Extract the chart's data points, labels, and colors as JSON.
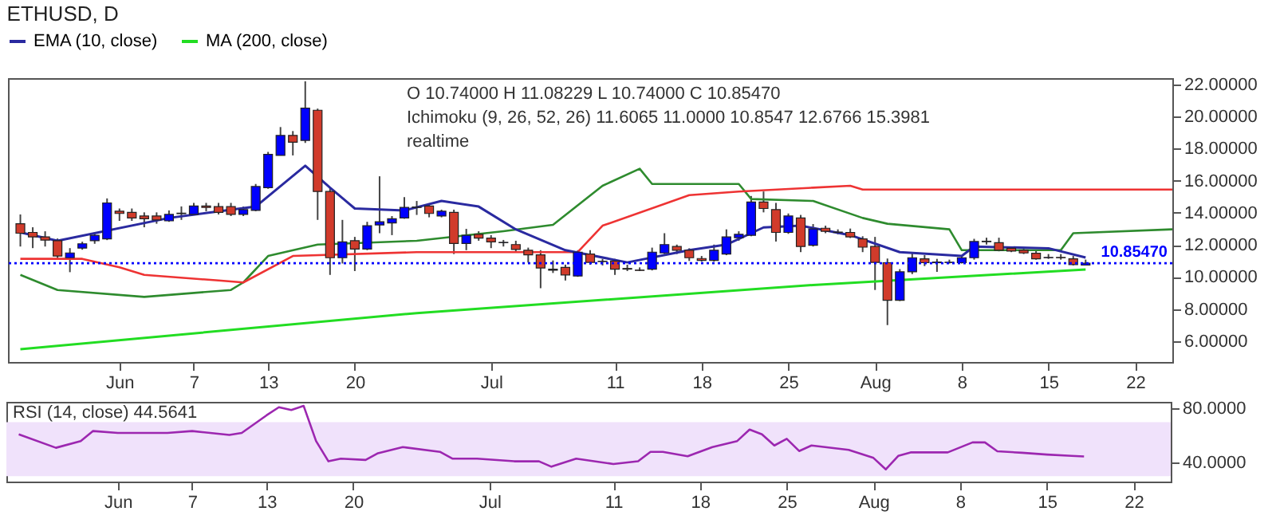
{
  "chart_data": [
    {
      "type": "candlestick",
      "title": "ETHUSD, D",
      "x": [
        "--05-24",
        "--05-25",
        "--05-26",
        "--05-27",
        "--05-28",
        "--05-29",
        "--05-30",
        "--05-31",
        "--06-01",
        "--06-02",
        "--06-03",
        "--06-04",
        "--06-05",
        "--06-06",
        "--06-07",
        "--06-08",
        "--06-09",
        "--06-10",
        "--06-11",
        "--06-12",
        "--06-13",
        "--06-14",
        "--06-15",
        "--06-16",
        "--06-17",
        "--06-18",
        "--06-19",
        "--06-20",
        "--06-21",
        "--06-22",
        "--06-23",
        "--06-24",
        "--06-25",
        "--06-26",
        "--06-27",
        "--06-28",
        "--06-29",
        "--06-30",
        "--07-01",
        "--07-02",
        "--07-03",
        "--07-04",
        "--07-05",
        "--07-06",
        "--07-07",
        "--07-08",
        "--07-09",
        "--07-10",
        "--07-11",
        "--07-12",
        "--07-13",
        "--07-14",
        "--07-15",
        "--07-16",
        "--07-17",
        "--07-18",
        "--07-19",
        "--07-20",
        "--07-21",
        "--07-22",
        "--07-23",
        "--07-24",
        "--07-25",
        "--07-26",
        "--07-27",
        "--07-28",
        "--07-29",
        "--07-30",
        "--07-31",
        "--08-01",
        "--08-02",
        "--08-03",
        "--08-04",
        "--08-05",
        "--08-06",
        "--08-07",
        "--08-08",
        "--08-09",
        "--08-10",
        "--08-11",
        "--08-12",
        "--08-13",
        "--08-14",
        "--08-15",
        "--08-16",
        "--08-17",
        "--08-18"
      ],
      "ohlc": [
        [
          13.32,
          13.9,
          11.9,
          12.73
        ],
        [
          12.78,
          13.1,
          11.8,
          12.5
        ],
        [
          12.5,
          12.85,
          11.9,
          12.3
        ],
        [
          12.26,
          12.4,
          11.1,
          11.31
        ],
        [
          11.2,
          11.8,
          10.3,
          11.5
        ],
        [
          11.8,
          12.2,
          11.7,
          12.07
        ],
        [
          12.26,
          12.78,
          12.07,
          12.6
        ],
        [
          12.38,
          14.9,
          12.3,
          14.62
        ],
        [
          14.1,
          14.27,
          13.5,
          13.96
        ],
        [
          14.03,
          14.27,
          13.5,
          13.68
        ],
        [
          13.8,
          14.03,
          13.1,
          13.63
        ],
        [
          13.8,
          14.03,
          13.32,
          13.56
        ],
        [
          13.5,
          14.15,
          13.44,
          13.9
        ],
        [
          13.95,
          14.4,
          13.56,
          13.98
        ],
        [
          13.9,
          14.62,
          13.87,
          14.43
        ],
        [
          14.43,
          14.62,
          14.1,
          14.34
        ],
        [
          14.39,
          14.62,
          13.9,
          14.03
        ],
        [
          14.39,
          14.62,
          13.8,
          13.9
        ],
        [
          13.9,
          14.39,
          13.8,
          14.2
        ],
        [
          14.15,
          15.8,
          14.1,
          15.64
        ],
        [
          15.57,
          17.8,
          15.5,
          17.65
        ],
        [
          17.58,
          19.35,
          17.58,
          18.83
        ],
        [
          18.83,
          19.1,
          17.58,
          18.4
        ],
        [
          18.52,
          22.2,
          18.36,
          20.53
        ],
        [
          20.4,
          20.5,
          13.56,
          15.33
        ],
        [
          15.33,
          15.57,
          10.13,
          11.2
        ],
        [
          11.2,
          13.56,
          10.84,
          12.19
        ],
        [
          12.26,
          12.5,
          10.37,
          11.74
        ],
        [
          11.74,
          13.44,
          11.67,
          13.2
        ],
        [
          13.25,
          16.28,
          12.73,
          13.44
        ],
        [
          13.37,
          13.8,
          12.61,
          13.63
        ],
        [
          13.68,
          14.98,
          13.63,
          14.34
        ],
        [
          14.34,
          14.74,
          13.87,
          14.36
        ],
        [
          14.43,
          14.5,
          13.72,
          13.96
        ],
        [
          13.8,
          14.2,
          13.72,
          14.1
        ],
        [
          14.03,
          14.2,
          11.43,
          12.09
        ],
        [
          12.09,
          13.0,
          11.67,
          12.6
        ],
        [
          12.66,
          12.85,
          12.26,
          12.43
        ],
        [
          12.43,
          12.61,
          11.8,
          12.19
        ],
        [
          12.14,
          12.31,
          11.9,
          12.16
        ],
        [
          12.02,
          12.26,
          11.6,
          11.72
        ],
        [
          11.67,
          11.83,
          10.9,
          11.38
        ],
        [
          11.38,
          11.67,
          9.3,
          10.56
        ],
        [
          10.49,
          11.03,
          10.25,
          10.42
        ],
        [
          10.6,
          10.77,
          9.78,
          10.13
        ],
        [
          10.06,
          11.67,
          10.01,
          11.55
        ],
        [
          11.43,
          11.67,
          10.77,
          10.91
        ],
        [
          10.96,
          11.13,
          10.72,
          10.98
        ],
        [
          11.0,
          11.13,
          10.13,
          10.49
        ],
        [
          10.53,
          10.77,
          10.37,
          10.49
        ],
        [
          10.43,
          10.6,
          10.37,
          10.41
        ],
        [
          10.49,
          11.83,
          10.41,
          11.55
        ],
        [
          11.5,
          12.73,
          11.43,
          12.02
        ],
        [
          11.9,
          12.02,
          11.43,
          11.67
        ],
        [
          11.67,
          11.79,
          11.0,
          11.2
        ],
        [
          11.15,
          11.31,
          10.96,
          11.03
        ],
        [
          11.03,
          12.02,
          10.96,
          11.67
        ],
        [
          11.43,
          12.97,
          11.36,
          12.5
        ],
        [
          12.45,
          12.85,
          12.26,
          12.66
        ],
        [
          12.6,
          15.05,
          12.54,
          14.67
        ],
        [
          14.67,
          15.33,
          14.03,
          14.27
        ],
        [
          14.2,
          14.62,
          12.21,
          12.78
        ],
        [
          12.78,
          13.96,
          12.69,
          13.8
        ],
        [
          13.68,
          13.87,
          11.55,
          11.9
        ],
        [
          11.98,
          13.3,
          11.9,
          13.0
        ],
        [
          13.04,
          13.2,
          12.73,
          12.85
        ],
        [
          12.8,
          12.97,
          12.66,
          12.78
        ],
        [
          12.78,
          13.02,
          12.43,
          12.5
        ],
        [
          12.38,
          12.54,
          11.55,
          11.86
        ],
        [
          11.9,
          12.5,
          9.19,
          10.91
        ],
        [
          10.89,
          11.15,
          7.0,
          8.55
        ],
        [
          8.55,
          10.49,
          8.5,
          10.32
        ],
        [
          10.32,
          11.55,
          10.18,
          11.2
        ],
        [
          11.13,
          11.36,
          10.68,
          10.89
        ],
        [
          10.89,
          11.13,
          10.32,
          10.93
        ],
        [
          10.9,
          11.08,
          10.84,
          10.92
        ],
        [
          10.89,
          11.36,
          10.84,
          11.2
        ],
        [
          11.2,
          12.38,
          11.08,
          12.21
        ],
        [
          12.2,
          12.45,
          12.02,
          12.23
        ],
        [
          12.14,
          12.45,
          11.6,
          11.67
        ],
        [
          11.79,
          11.9,
          11.55,
          11.62
        ],
        [
          11.67,
          11.79,
          11.43,
          11.5
        ],
        [
          11.48,
          11.67,
          11.08,
          11.13
        ],
        [
          11.2,
          11.43,
          11.13,
          11.22
        ],
        [
          11.22,
          11.43,
          11.08,
          11.2
        ],
        [
          11.13,
          11.31,
          10.72,
          10.77
        ],
        [
          10.74,
          11.08229,
          10.74,
          10.8547
        ]
      ],
      "series": [
        {
          "name": "EMA (10, close)",
          "type": "line",
          "color": "#2a2aa0",
          "x": [
            "--05-24",
            "--05-27",
            "--06-05",
            "--06-12",
            "--06-16",
            "--06-18",
            "--06-20",
            "--06-24",
            "--06-27",
            "--06-30",
            "--07-03",
            "--07-07",
            "--07-12",
            "--07-17",
            "--07-20",
            "--07-23",
            "--07-26",
            "--07-30",
            "--08-03",
            "--08-08",
            "--08-09",
            "--08-15",
            "--08-18"
          ],
          "values": [
            12.78,
            12.26,
            13.68,
            14.39,
            16.94,
            15.57,
            14.27,
            14.15,
            14.74,
            14.39,
            12.97,
            11.67,
            10.91,
            11.67,
            12.02,
            13.09,
            13.2,
            12.61,
            11.55,
            11.31,
            11.9,
            11.79,
            11.21
          ]
        },
        {
          "name": "MA (200, close)",
          "type": "line",
          "color": "#22dd22",
          "x": [
            "--05-24",
            "--06-25",
            "--07-27",
            "--08-18"
          ],
          "values": [
            5.5,
            7.75,
            9.5,
            10.47
          ]
        },
        {
          "type": "line",
          "color": "#2e8b2e",
          "x": [
            "--05-24",
            "--05-27",
            "--06-03",
            "--06-10",
            "--06-11",
            "--06-13",
            "--06-17",
            "--06-25",
            "--07-02",
            "--07-06",
            "--07-10",
            "--07-13",
            "--07-14",
            "--07-21",
            "--07-22",
            "--07-27",
            "--07-31",
            "--08-02",
            "--08-07",
            "--08-08",
            "--08-16",
            "--08-17",
            "--08-25"
          ],
          "values": [
            10.13,
            9.19,
            8.76,
            9.19,
            9.66,
            11.31,
            12.02,
            12.26,
            12.85,
            13.25,
            15.69,
            16.75,
            15.8,
            15.8,
            14.86,
            14.74,
            13.68,
            13.32,
            12.97,
            11.67,
            11.67,
            12.73,
            12.97
          ]
        },
        {
          "type": "line",
          "color": "#ee3333",
          "x": [
            "--05-24",
            "--05-29",
            "--06-01",
            "--06-03",
            "--06-09",
            "--06-11",
            "--06-15",
            "--06-25",
            "--07-08",
            "--07-10",
            "--07-17",
            "--07-21",
            "--07-27",
            "--07-30",
            "--07-31",
            "--08-25"
          ],
          "values": [
            11.13,
            11.13,
            10.6,
            10.13,
            9.78,
            9.66,
            11.31,
            11.55,
            11.55,
            13.2,
            15.1,
            15.33,
            15.57,
            15.69,
            15.45,
            15.45
          ]
        }
      ],
      "xlim": [
        "--05-23",
        "--08-25"
      ],
      "xticks": [
        {
          "value": "--06-01",
          "label": "Jun"
        },
        {
          "value": "--06-07",
          "label": "7"
        },
        {
          "value": "--06-13",
          "label": "13"
        },
        {
          "value": "--06-20",
          "label": "20"
        },
        {
          "value": "--07-01",
          "label": "Jul"
        },
        {
          "value": "--07-11",
          "label": "11"
        },
        {
          "value": "--07-18",
          "label": "18"
        },
        {
          "value": "--07-25",
          "label": "25"
        },
        {
          "value": "--08-01",
          "label": "Aug"
        },
        {
          "value": "--08-08",
          "label": "8"
        },
        {
          "value": "--08-15",
          "label": "15"
        },
        {
          "value": "--08-22",
          "label": "22"
        }
      ],
      "ylim": [
        4.7,
        22.4
      ],
      "yticks": [
        {
          "value": 6,
          "label": "6.00000"
        },
        {
          "value": 8,
          "label": "8.00000"
        },
        {
          "value": 10,
          "label": "10.00000"
        },
        {
          "value": 12,
          "label": "12.00000"
        },
        {
          "value": 14,
          "label": "14.00000"
        },
        {
          "value": 16,
          "label": "16.00000"
        },
        {
          "value": 18,
          "label": "18.00000"
        },
        {
          "value": 20,
          "label": "20.00000"
        },
        {
          "value": 22,
          "label": "22.00000"
        }
      ],
      "ref_lines": [
        {
          "axis": "y",
          "value": 10.8547,
          "label": "10.85470",
          "color": "#0000ff",
          "line_style": "dotted"
        }
      ],
      "annotations": [
        "O 10.74000  H 11.08229  L 10.74000  C 10.85470",
        "Ichimoku (9, 26, 52, 26)  11.6065  11.0000  10.8547  12.6766  15.3981",
        "realtime"
      ],
      "legend": "top"
    },
    {
      "type": "line",
      "title": "RSI (14, close)  44.5641",
      "x": [
        "--05-24",
        "--05-27",
        "--05-29",
        "--05-30",
        "--06-01",
        "--06-05",
        "--06-07",
        "--06-10",
        "--06-11",
        "--06-13",
        "--06-14",
        "--06-15",
        "--06-16",
        "--06-17",
        "--06-18",
        "--06-19",
        "--06-21",
        "--06-22",
        "--06-24",
        "--06-27",
        "--06-28",
        "--06-30",
        "--07-03",
        "--07-05",
        "--07-06",
        "--07-08",
        "--07-11",
        "--07-13",
        "--07-14",
        "--07-15",
        "--07-17",
        "--07-19",
        "--07-21",
        "--07-22",
        "--07-23",
        "--07-24",
        "--07-25",
        "--07-26",
        "--07-27",
        "--07-30",
        "--08-01",
        "--08-02",
        "--08-03",
        "--08-04",
        "--08-07",
        "--08-09",
        "--08-10",
        "--08-11",
        "--08-13",
        "--08-15",
        "--08-17",
        "--08-18"
      ],
      "series": [
        {
          "color": "#9c27b0",
          "values": [
            61,
            51,
            56,
            63.4,
            62,
            62,
            63.4,
            60.5,
            62,
            75,
            81,
            79,
            82,
            56,
            41,
            43,
            42,
            47,
            51.5,
            48,
            43,
            43,
            41,
            41,
            37,
            43,
            39,
            41,
            48,
            48,
            44.7,
            51.5,
            56,
            64.5,
            61,
            52.7,
            57.6,
            48.6,
            52.7,
            49.5,
            43.5,
            35,
            45,
            47.6,
            47.6,
            55,
            55,
            48.4,
            47.3,
            46,
            45,
            44.56
          ]
        }
      ],
      "xlim": [
        "--05-23",
        "--08-25"
      ],
      "xticks": [
        {
          "value": "--06-01",
          "label": "Jun"
        },
        {
          "value": "--06-07",
          "label": "7"
        },
        {
          "value": "--06-13",
          "label": "13"
        },
        {
          "value": "--06-20",
          "label": "20"
        },
        {
          "value": "--07-01",
          "label": "Jul"
        },
        {
          "value": "--07-11",
          "label": "11"
        },
        {
          "value": "--07-18",
          "label": "18"
        },
        {
          "value": "--07-25",
          "label": "25"
        },
        {
          "value": "--08-01",
          "label": "Aug"
        },
        {
          "value": "--08-08",
          "label": "8"
        },
        {
          "value": "--08-15",
          "label": "15"
        },
        {
          "value": "--08-22",
          "label": "22"
        }
      ],
      "ylim": [
        26,
        85
      ],
      "yticks": [
        {
          "value": 40,
          "label": "40.0000"
        },
        {
          "value": 80,
          "label": "80.0000"
        }
      ],
      "bands": [
        {
          "axis": "y",
          "from": 30,
          "to": 70,
          "color": "#f0e2fb"
        }
      ]
    }
  ]
}
